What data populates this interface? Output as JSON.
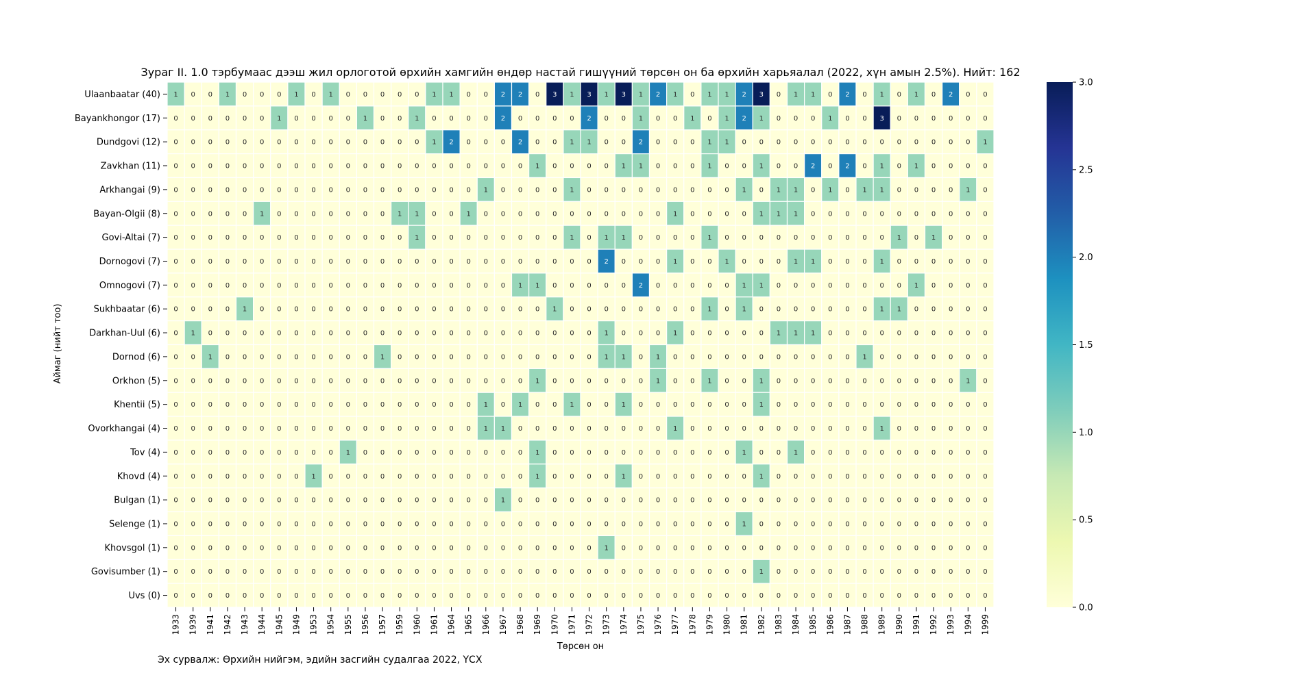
{
  "chart_data": {
    "type": "heatmap",
    "title": "Зураг II. 1.0 тэрбумаас дээш жил орлоготой өрхийн хамгийн өндөр настай гишүүний төрсөн он ба өрхийн харьяалал (2022, хүн амын 2.5%). Нийт: 162",
    "xlabel": "Төрсөн он",
    "ylabel": "Аймаг (нийт тоо)",
    "x": [
      "1933",
      "1939",
      "1941",
      "1942",
      "1943",
      "1944",
      "1945",
      "1949",
      "1953",
      "1954",
      "1955",
      "1956",
      "1957",
      "1959",
      "1960",
      "1961",
      "1964",
      "1965",
      "1966",
      "1967",
      "1968",
      "1969",
      "1970",
      "1971",
      "1972",
      "1973",
      "1974",
      "1975",
      "1976",
      "1977",
      "1978",
      "1979",
      "1980",
      "1981",
      "1982",
      "1983",
      "1984",
      "1985",
      "1986",
      "1987",
      "1988",
      "1989",
      "1990",
      "1991",
      "1992",
      "1993",
      "1994",
      "1999"
    ],
    "y": [
      "Ulaanbaatar (40)",
      "Bayankhongor (17)",
      "Dundgovi (12)",
      "Zavkhan (11)",
      "Arkhangai (9)",
      "Bayan-Olgii (8)",
      "Govi-Altai (7)",
      "Dornogovi (7)",
      "Omnogovi (7)",
      "Sukhbaatar (6)",
      "Darkhan-Uul (6)",
      "Dornod (6)",
      "Orkhon (5)",
      "Khentii (5)",
      "Ovorkhangai (4)",
      "Tov (4)",
      "Khovd (4)",
      "Bulgan (1)",
      "Selenge (1)",
      "Khovsgol (1)",
      "Govisumber (1)",
      "Uvs (0)"
    ],
    "z": [
      [
        1,
        0,
        0,
        1,
        0,
        0,
        0,
        1,
        0,
        1,
        0,
        0,
        0,
        0,
        0,
        1,
        1,
        0,
        0,
        2,
        2,
        0,
        3,
        1,
        3,
        1,
        3,
        1,
        2,
        1,
        0,
        1,
        1,
        2,
        3,
        0,
        1,
        1,
        0,
        2,
        0,
        1,
        0,
        1,
        0,
        2,
        0,
        0
      ],
      [
        0,
        0,
        0,
        0,
        0,
        0,
        1,
        0,
        0,
        0,
        0,
        1,
        0,
        0,
        1,
        0,
        0,
        0,
        0,
        2,
        0,
        0,
        0,
        0,
        2,
        0,
        0,
        1,
        0,
        0,
        1,
        0,
        1,
        2,
        1,
        0,
        0,
        0,
        1,
        0,
        0,
        3,
        0,
        0,
        0,
        0,
        0,
        0
      ],
      [
        0,
        0,
        0,
        0,
        0,
        0,
        0,
        0,
        0,
        0,
        0,
        0,
        0,
        0,
        0,
        1,
        2,
        0,
        0,
        0,
        2,
        0,
        0,
        1,
        1,
        0,
        0,
        2,
        0,
        0,
        0,
        1,
        1,
        0,
        0,
        0,
        0,
        0,
        0,
        0,
        0,
        0,
        0,
        0,
        0,
        0,
        0,
        1
      ],
      [
        0,
        0,
        0,
        0,
        0,
        0,
        0,
        0,
        0,
        0,
        0,
        0,
        0,
        0,
        0,
        0,
        0,
        0,
        0,
        0,
        0,
        1,
        0,
        0,
        0,
        0,
        1,
        1,
        0,
        0,
        0,
        1,
        0,
        0,
        1,
        0,
        0,
        2,
        0,
        2,
        0,
        1,
        0,
        1,
        0,
        0,
        0,
        0
      ],
      [
        0,
        0,
        0,
        0,
        0,
        0,
        0,
        0,
        0,
        0,
        0,
        0,
        0,
        0,
        0,
        0,
        0,
        0,
        1,
        0,
        0,
        0,
        0,
        1,
        0,
        0,
        0,
        0,
        0,
        0,
        0,
        0,
        0,
        1,
        0,
        1,
        1,
        0,
        1,
        0,
        1,
        1,
        0,
        0,
        0,
        0,
        1,
        0
      ],
      [
        0,
        0,
        0,
        0,
        0,
        1,
        0,
        0,
        0,
        0,
        0,
        0,
        0,
        1,
        1,
        0,
        0,
        1,
        0,
        0,
        0,
        0,
        0,
        0,
        0,
        0,
        0,
        0,
        0,
        1,
        0,
        0,
        0,
        0,
        1,
        1,
        1,
        0,
        0,
        0,
        0,
        0,
        0,
        0,
        0,
        0,
        0,
        0
      ],
      [
        0,
        0,
        0,
        0,
        0,
        0,
        0,
        0,
        0,
        0,
        0,
        0,
        0,
        0,
        1,
        0,
        0,
        0,
        0,
        0,
        0,
        0,
        0,
        1,
        0,
        1,
        1,
        0,
        0,
        0,
        0,
        1,
        0,
        0,
        0,
        0,
        0,
        0,
        0,
        0,
        0,
        0,
        1,
        0,
        1,
        0,
        0,
        0
      ],
      [
        0,
        0,
        0,
        0,
        0,
        0,
        0,
        0,
        0,
        0,
        0,
        0,
        0,
        0,
        0,
        0,
        0,
        0,
        0,
        0,
        0,
        0,
        0,
        0,
        0,
        2,
        0,
        0,
        0,
        1,
        0,
        0,
        1,
        0,
        0,
        0,
        1,
        1,
        0,
        0,
        0,
        1,
        0,
        0,
        0,
        0,
        0,
        0
      ],
      [
        0,
        0,
        0,
        0,
        0,
        0,
        0,
        0,
        0,
        0,
        0,
        0,
        0,
        0,
        0,
        0,
        0,
        0,
        0,
        0,
        1,
        1,
        0,
        0,
        0,
        0,
        0,
        2,
        0,
        0,
        0,
        0,
        0,
        1,
        1,
        0,
        0,
        0,
        0,
        0,
        0,
        0,
        0,
        1,
        0,
        0,
        0,
        0
      ],
      [
        0,
        0,
        0,
        0,
        1,
        0,
        0,
        0,
        0,
        0,
        0,
        0,
        0,
        0,
        0,
        0,
        0,
        0,
        0,
        0,
        0,
        0,
        1,
        0,
        0,
        0,
        0,
        0,
        0,
        0,
        0,
        1,
        0,
        1,
        0,
        0,
        0,
        0,
        0,
        0,
        0,
        1,
        1,
        0,
        0,
        0,
        0,
        0
      ],
      [
        0,
        1,
        0,
        0,
        0,
        0,
        0,
        0,
        0,
        0,
        0,
        0,
        0,
        0,
        0,
        0,
        0,
        0,
        0,
        0,
        0,
        0,
        0,
        0,
        0,
        1,
        0,
        0,
        0,
        1,
        0,
        0,
        0,
        0,
        0,
        1,
        1,
        1,
        0,
        0,
        0,
        0,
        0,
        0,
        0,
        0,
        0,
        0
      ],
      [
        0,
        0,
        1,
        0,
        0,
        0,
        0,
        0,
        0,
        0,
        0,
        0,
        1,
        0,
        0,
        0,
        0,
        0,
        0,
        0,
        0,
        0,
        0,
        0,
        0,
        1,
        1,
        0,
        1,
        0,
        0,
        0,
        0,
        0,
        0,
        0,
        0,
        0,
        0,
        0,
        1,
        0,
        0,
        0,
        0,
        0,
        0,
        0
      ],
      [
        0,
        0,
        0,
        0,
        0,
        0,
        0,
        0,
        0,
        0,
        0,
        0,
        0,
        0,
        0,
        0,
        0,
        0,
        0,
        0,
        0,
        1,
        0,
        0,
        0,
        0,
        0,
        0,
        1,
        0,
        0,
        1,
        0,
        0,
        1,
        0,
        0,
        0,
        0,
        0,
        0,
        0,
        0,
        0,
        0,
        0,
        1,
        0
      ],
      [
        0,
        0,
        0,
        0,
        0,
        0,
        0,
        0,
        0,
        0,
        0,
        0,
        0,
        0,
        0,
        0,
        0,
        0,
        1,
        0,
        1,
        0,
        0,
        1,
        0,
        0,
        1,
        0,
        0,
        0,
        0,
        0,
        0,
        0,
        1,
        0,
        0,
        0,
        0,
        0,
        0,
        0,
        0,
        0,
        0,
        0,
        0,
        0
      ],
      [
        0,
        0,
        0,
        0,
        0,
        0,
        0,
        0,
        0,
        0,
        0,
        0,
        0,
        0,
        0,
        0,
        0,
        0,
        1,
        1,
        0,
        0,
        0,
        0,
        0,
        0,
        0,
        0,
        0,
        1,
        0,
        0,
        0,
        0,
        0,
        0,
        0,
        0,
        0,
        0,
        0,
        1,
        0,
        0,
        0,
        0,
        0,
        0
      ],
      [
        0,
        0,
        0,
        0,
        0,
        0,
        0,
        0,
        0,
        0,
        1,
        0,
        0,
        0,
        0,
        0,
        0,
        0,
        0,
        0,
        0,
        1,
        0,
        0,
        0,
        0,
        0,
        0,
        0,
        0,
        0,
        0,
        0,
        1,
        0,
        0,
        1,
        0,
        0,
        0,
        0,
        0,
        0,
        0,
        0,
        0,
        0,
        0
      ],
      [
        0,
        0,
        0,
        0,
        0,
        0,
        0,
        0,
        1,
        0,
        0,
        0,
        0,
        0,
        0,
        0,
        0,
        0,
        0,
        0,
        0,
        1,
        0,
        0,
        0,
        0,
        1,
        0,
        0,
        0,
        0,
        0,
        0,
        0,
        1,
        0,
        0,
        0,
        0,
        0,
        0,
        0,
        0,
        0,
        0,
        0,
        0,
        0
      ],
      [
        0,
        0,
        0,
        0,
        0,
        0,
        0,
        0,
        0,
        0,
        0,
        0,
        0,
        0,
        0,
        0,
        0,
        0,
        0,
        1,
        0,
        0,
        0,
        0,
        0,
        0,
        0,
        0,
        0,
        0,
        0,
        0,
        0,
        0,
        0,
        0,
        0,
        0,
        0,
        0,
        0,
        0,
        0,
        0,
        0,
        0,
        0,
        0
      ],
      [
        0,
        0,
        0,
        0,
        0,
        0,
        0,
        0,
        0,
        0,
        0,
        0,
        0,
        0,
        0,
        0,
        0,
        0,
        0,
        0,
        0,
        0,
        0,
        0,
        0,
        0,
        0,
        0,
        0,
        0,
        0,
        0,
        0,
        1,
        0,
        0,
        0,
        0,
        0,
        0,
        0,
        0,
        0,
        0,
        0,
        0,
        0,
        0
      ],
      [
        0,
        0,
        0,
        0,
        0,
        0,
        0,
        0,
        0,
        0,
        0,
        0,
        0,
        0,
        0,
        0,
        0,
        0,
        0,
        0,
        0,
        0,
        0,
        0,
        0,
        1,
        0,
        0,
        0,
        0,
        0,
        0,
        0,
        0,
        0,
        0,
        0,
        0,
        0,
        0,
        0,
        0,
        0,
        0,
        0,
        0,
        0,
        0
      ],
      [
        0,
        0,
        0,
        0,
        0,
        0,
        0,
        0,
        0,
        0,
        0,
        0,
        0,
        0,
        0,
        0,
        0,
        0,
        0,
        0,
        0,
        0,
        0,
        0,
        0,
        0,
        0,
        0,
        0,
        0,
        0,
        0,
        0,
        0,
        1,
        0,
        0,
        0,
        0,
        0,
        0,
        0,
        0,
        0,
        0,
        0,
        0,
        0
      ],
      [
        0,
        0,
        0,
        0,
        0,
        0,
        0,
        0,
        0,
        0,
        0,
        0,
        0,
        0,
        0,
        0,
        0,
        0,
        0,
        0,
        0,
        0,
        0,
        0,
        0,
        0,
        0,
        0,
        0,
        0,
        0,
        0,
        0,
        0,
        0,
        0,
        0,
        0,
        0,
        0,
        0,
        0,
        0,
        0,
        0,
        0,
        0,
        0
      ]
    ],
    "zlim": [
      0,
      3
    ],
    "colorbar_ticks": [
      "0.0",
      "0.5",
      "1.0",
      "1.5",
      "2.0",
      "2.5",
      "3.0"
    ],
    "colormap": [
      "#ffffd9",
      "#edf8b1",
      "#c7e9b4",
      "#7fcdbb",
      "#41b6c4",
      "#1d91c0",
      "#225ea8",
      "#253494",
      "#081d58"
    ],
    "legend": "colorbar-right",
    "annotate_cells": true
  },
  "source_note": "Эх сурвалж: Өрхийн нийгэм, эдийн засгийн судалгаа 2022, ҮСХ"
}
